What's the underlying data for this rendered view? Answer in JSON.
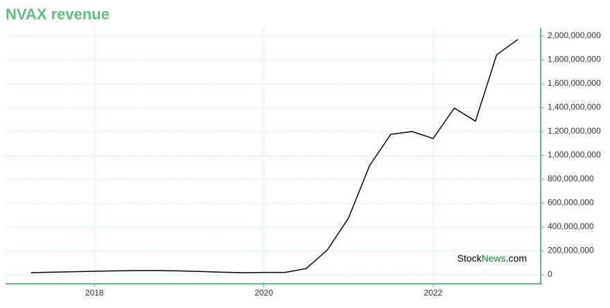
{
  "chart_data": {
    "type": "line",
    "title": "NVAX revenue",
    "watermark": {
      "part1": "Stock",
      "part2": "News",
      "part3": ".com"
    },
    "x": [
      2017.25,
      2017.5,
      2017.75,
      2018,
      2018.25,
      2018.5,
      2018.75,
      2019,
      2019.25,
      2019.5,
      2019.75,
      2020,
      2020.25,
      2020.5,
      2020.75,
      2021,
      2021.25,
      2021.5,
      2021.75,
      2022,
      2022.25,
      2022.5,
      2022.75,
      2023
    ],
    "series": [
      {
        "name": "NVAX",
        "color": "#000000",
        "values": [
          18000000,
          22000000,
          26000000,
          30000000,
          33000000,
          36000000,
          36000000,
          33000000,
          28000000,
          22000000,
          18000000,
          20000000,
          20000000,
          52000000,
          208000000,
          475000000,
          916000000,
          1177000000,
          1200000000,
          1142000000,
          1397000000,
          1287000000,
          1843000000,
          1971000000
        ]
      }
    ],
    "xlim": [
      2016.95,
      2023.27
    ],
    "xticks": [
      2018,
      2020,
      2022
    ],
    "ylim": [
      -75000000,
      2070000000
    ],
    "yticks": [
      {
        "value": 0,
        "label": "0"
      },
      {
        "value": 200000000,
        "label": "200,000,000"
      },
      {
        "value": 400000000,
        "label": "400,000,000"
      },
      {
        "value": 600000000,
        "label": "600,000,000"
      },
      {
        "value": 800000000,
        "label": "800,000,000"
      },
      {
        "value": 1000000000,
        "label": "1,000,000,000"
      },
      {
        "value": 1200000000,
        "label": "1,200,000,000"
      },
      {
        "value": 1400000000,
        "label": "1,400,000,000"
      },
      {
        "value": 1600000000,
        "label": "1,600,000,000"
      },
      {
        "value": 1800000000,
        "label": "1,800,000,000"
      },
      {
        "value": 2000000000,
        "label": "2,000,000,000"
      }
    ],
    "grid": true,
    "accent": "#5cbf7f"
  }
}
